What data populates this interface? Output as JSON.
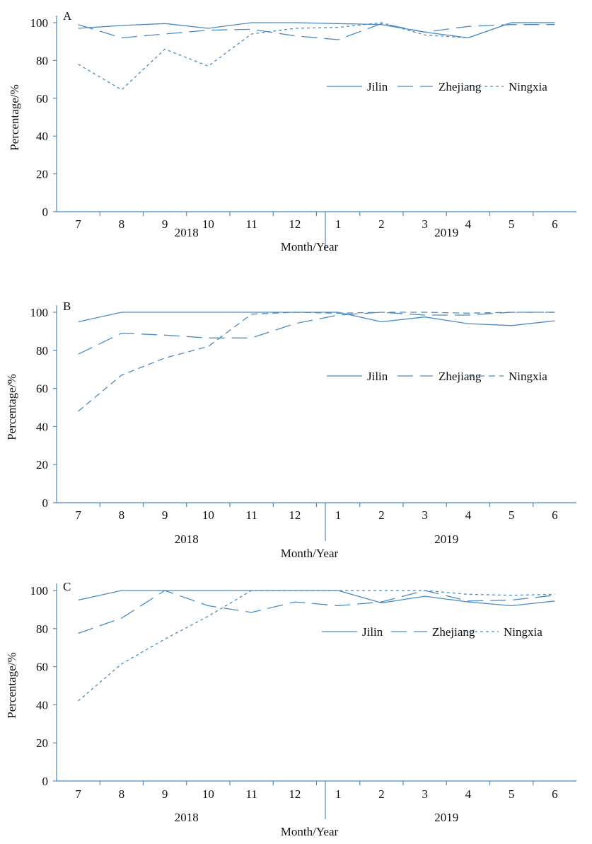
{
  "style": {
    "line_color": "#4a8ac4",
    "axis_color": "#4a8ac4",
    "text_color": "#111111"
  },
  "chart_data": [
    {
      "type": "line",
      "panel_label": "A",
      "categories": [
        "7",
        "8",
        "9",
        "10",
        "11",
        "12",
        "1",
        "2",
        "3",
        "4",
        "5",
        "6"
      ],
      "group_labels": [
        "2018",
        "2019"
      ],
      "xlabel": "Month/Year",
      "ylabel": "Percentage/%",
      "ylim": [
        0,
        100
      ],
      "yticks": [
        0,
        20,
        40,
        60,
        80,
        100
      ],
      "grid": false,
      "legend_position": "right",
      "series": [
        {
          "name": "Jilin",
          "dash": "solid",
          "values": [
            97,
            98.5,
            99.5,
            97,
            100,
            100,
            99.5,
            99,
            95,
            92,
            100,
            100
          ]
        },
        {
          "name": "Zhejiang",
          "dash": "long",
          "values": [
            99,
            92,
            94,
            96,
            96.5,
            93,
            91,
            99.5,
            95,
            98,
            99,
            99
          ]
        },
        {
          "name": "Ningxia",
          "dash": "short",
          "values": [
            78,
            64.5,
            86,
            77,
            94,
            97,
            97.5,
            100,
            93.5,
            92,
            100,
            100
          ]
        }
      ]
    },
    {
      "type": "line",
      "panel_label": "B",
      "categories": [
        "7",
        "8",
        "9",
        "10",
        "11",
        "12",
        "1",
        "2",
        "3",
        "4",
        "5",
        "6"
      ],
      "group_labels": [
        "2018",
        "2019"
      ],
      "xlabel": "Month/Year",
      "ylabel": "Percentage/%",
      "ylim": [
        0,
        100
      ],
      "yticks": [
        0,
        20,
        40,
        60,
        80,
        100
      ],
      "grid": false,
      "legend_position": "right",
      "series": [
        {
          "name": "Jilin",
          "dash": "solid",
          "values": [
            95,
            100,
            100,
            100,
            100,
            100,
            100,
            95,
            97.5,
            94,
            93,
            95.5
          ]
        },
        {
          "name": "Zhejiang",
          "dash": "long",
          "values": [
            78,
            89,
            88,
            86.5,
            86.5,
            94,
            98.5,
            100,
            98.5,
            98.5,
            100,
            100
          ]
        },
        {
          "name": "Ningxia",
          "dash": "medium",
          "values": [
            48,
            67,
            76,
            82,
            99,
            100,
            99.5,
            100,
            100,
            99.5,
            100,
            100
          ]
        }
      ]
    },
    {
      "type": "line",
      "panel_label": "C",
      "categories": [
        "7",
        "8",
        "9",
        "10",
        "11",
        "12",
        "1",
        "2",
        "3",
        "4",
        "5",
        "6"
      ],
      "group_labels": [
        "2018",
        "2019"
      ],
      "xlabel": "Month/Year",
      "ylabel": "Percentage/%",
      "ylim": [
        0,
        100
      ],
      "yticks": [
        0,
        20,
        40,
        60,
        80,
        100
      ],
      "grid": false,
      "legend_position": "right",
      "series": [
        {
          "name": "Jilin",
          "dash": "solid",
          "values": [
            95,
            100,
            100,
            100,
            100,
            100,
            100,
            93.5,
            97,
            94,
            92,
            94.5
          ]
        },
        {
          "name": "Zhejiang",
          "dash": "long",
          "values": [
            77.5,
            85.5,
            100,
            92,
            88.5,
            94,
            92,
            94,
            100,
            94.5,
            95,
            97.5
          ]
        },
        {
          "name": "Ningxia",
          "dash": "short",
          "values": [
            42,
            61.5,
            74.5,
            86.5,
            100,
            100,
            100,
            100,
            100,
            98,
            97.5,
            98
          ]
        }
      ]
    }
  ]
}
